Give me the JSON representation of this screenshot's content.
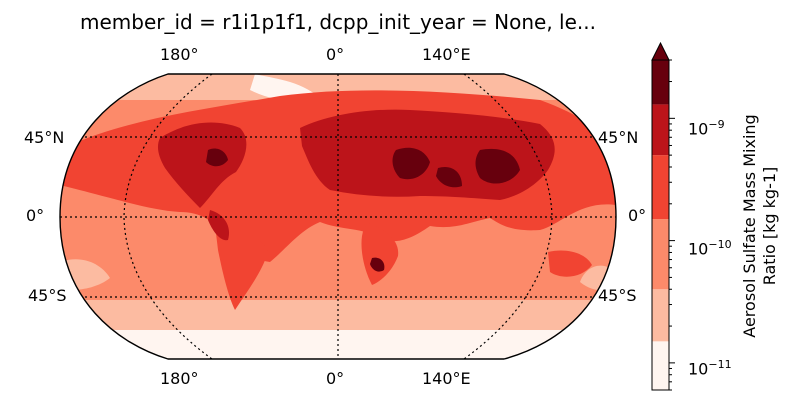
{
  "title": "member_id = r1i1p1f1, dcpp_init_year = None, le...",
  "map": {
    "projection": "Robinson",
    "gridlines": "dotted",
    "top_lon_labels": [
      "180°",
      "0°",
      "140°E"
    ],
    "bottom_lon_labels": [
      "180°",
      "0°",
      "140°E"
    ],
    "left_lat_labels": [
      "45°N",
      "0°",
      "45°S"
    ],
    "right_lat_labels": [
      "45°N",
      "0°",
      "45°S"
    ]
  },
  "colorbar": {
    "label_line1": "Aerosol Sulfate Mass Mixing",
    "label_line2": "Ratio [kg kg-1]",
    "scale": "log",
    "extend": "max",
    "tick_labels": [
      {
        "base": "10",
        "exp": "−9"
      },
      {
        "base": "10",
        "exp": "−10"
      },
      {
        "base": "10",
        "exp": "−11"
      }
    ],
    "colors": [
      "#fff5f0",
      "#fcbba1",
      "#fc8a6a",
      "#f14432",
      "#bc141a",
      "#67000d"
    ]
  },
  "chart_data": {
    "type": "heatmap",
    "title": "member_id = r1i1p1f1, dcpp_init_year = None, le...",
    "colorbar_label": "Aerosol Sulfate Mass Mixing Ratio [kg kg-1]",
    "colorbar_scale": "log",
    "colorbar_ticks": [
      1e-09,
      1e-10,
      1e-11
    ],
    "levels": [
      6e-12,
      1.5e-11,
      4e-11,
      1.5e-10,
      5e-10,
      1.3e-09,
      3e-09
    ]
  }
}
